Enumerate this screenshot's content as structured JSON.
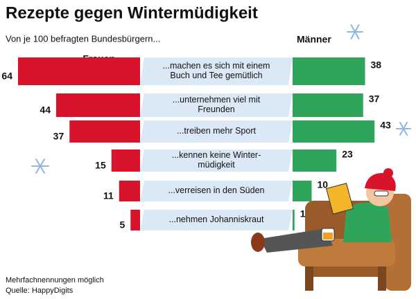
{
  "chart_data": {
    "type": "bar",
    "title": "Rezepte gegen Wintermüdigkeit",
    "subtitle": "Von je 100 befragten Bundesbürgern...",
    "categories": [
      [
        "...machen es sich mit einem",
        "Buch und Tee gemütlich"
      ],
      [
        "...unternehmen viel mit",
        "Freunden"
      ],
      [
        "...treiben mehr Sport"
      ],
      [
        "...kennen keine Winter-",
        "müdigkeit"
      ],
      [
        "...verreisen in den Süden"
      ],
      [
        "...nehmen Johanniskraut"
      ]
    ],
    "series": [
      {
        "name": "Frauen",
        "color": "#d7142b",
        "values": [
          64,
          44,
          37,
          15,
          11,
          5
        ]
      },
      {
        "name": "Männer",
        "color": "#2ea55a",
        "values": [
          38,
          37,
          43,
          23,
          10,
          1
        ]
      }
    ],
    "footnote": "Mehrfachnennungen möglich",
    "source": "Quelle: HappyDigits"
  }
}
